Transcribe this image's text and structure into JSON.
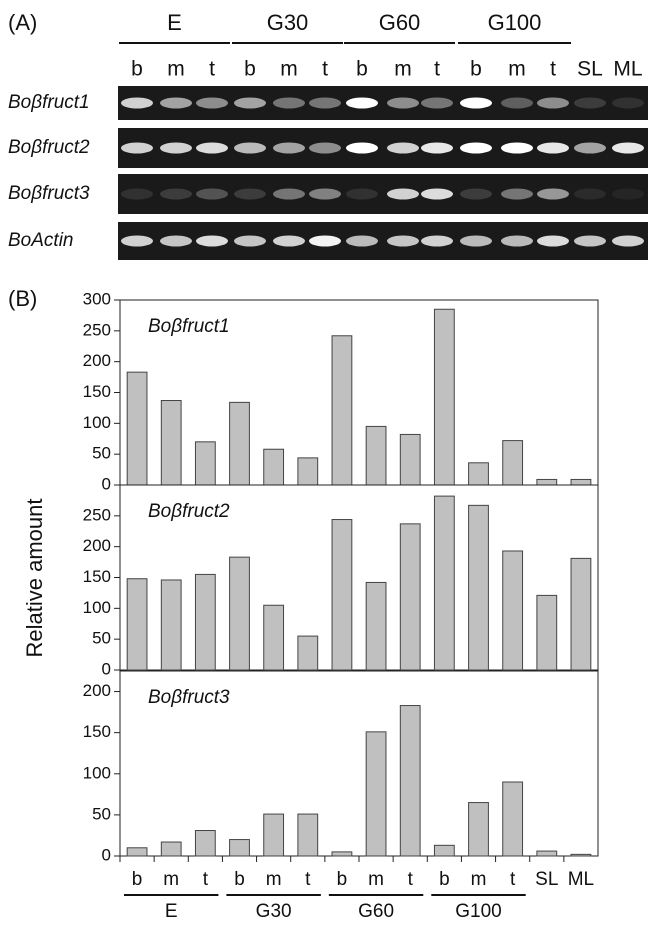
{
  "panel_a": {
    "label": "(A)",
    "groups": [
      "E",
      "G30",
      "G60",
      "G100"
    ],
    "lanes": [
      "b",
      "m",
      "t",
      "b",
      "m",
      "t",
      "b",
      "m",
      "t",
      "b",
      "m",
      "t",
      "SL",
      "ML"
    ],
    "rows": [
      "Boβfruct1",
      "Boβfruct2",
      "Boβfruct3",
      "BoActin"
    ]
  },
  "panel_b": {
    "label": "(B)",
    "ylabel": "Relative amount"
  },
  "chart_data": [
    {
      "type": "bar",
      "title": "Boβfruct1",
      "color": "#c0c0c0",
      "values": [
        183,
        137,
        70,
        134,
        58,
        44,
        242,
        95,
        82,
        285,
        36,
        72,
        9,
        9
      ],
      "ylim": [
        0,
        300
      ],
      "yticks": [
        0,
        50,
        100,
        150,
        200,
        250,
        300
      ]
    },
    {
      "type": "bar",
      "title": "Boβfruct2",
      "color": "#c0c0c0",
      "values": [
        148,
        146,
        155,
        183,
        105,
        55,
        244,
        142,
        237,
        282,
        267,
        193,
        121,
        181
      ],
      "ylim": [
        0,
        300
      ],
      "yticks": [
        0,
        50,
        100,
        150,
        200,
        250
      ]
    },
    {
      "type": "bar",
      "title": "Boβfruct3",
      "color": "#c0c0c0",
      "categories": [
        "b",
        "m",
        "t",
        "b",
        "m",
        "t",
        "b",
        "m",
        "t",
        "b",
        "m",
        "t",
        "SL",
        "ML"
      ],
      "groups": [
        "E",
        "G30",
        "G60",
        "G100"
      ],
      "values": [
        10,
        17,
        31,
        20,
        51,
        51,
        5,
        151,
        183,
        13,
        65,
        90,
        6,
        2
      ],
      "ylim": [
        0,
        225
      ],
      "yticks": [
        0,
        50,
        100,
        150,
        200
      ]
    }
  ]
}
